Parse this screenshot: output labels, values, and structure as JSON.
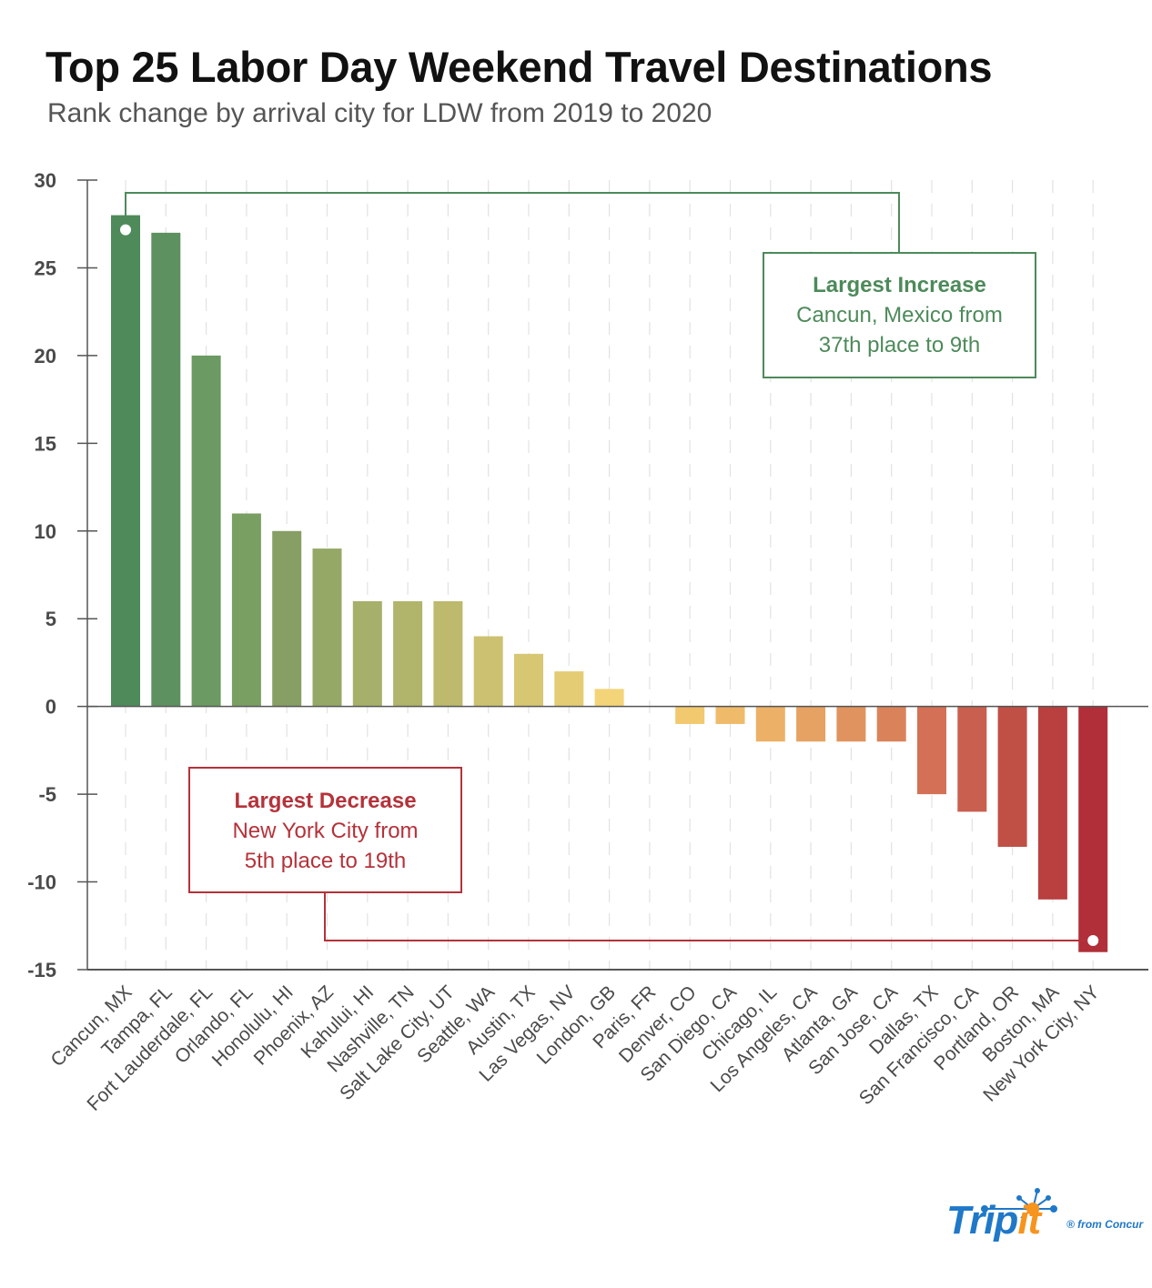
{
  "header": {
    "title": "Top 25 Labor Day Weekend Travel Destinations",
    "subtitle": "Rank change by arrival city for LDW from 2019 to 2020"
  },
  "annotations": {
    "increase": {
      "heading": "Largest Increase",
      "line1": "Cancun, Mexico from",
      "line2": "37th place to 9th",
      "color": "#4d8a5a"
    },
    "decrease": {
      "heading": "Largest Decrease",
      "line1": "New York City from",
      "line2": "5th place to 19th",
      "color": "#b5323a"
    }
  },
  "logo": {
    "word_main": "Trip",
    "word_accent": "it",
    "tagline": "® from Concur"
  },
  "chart_data": {
    "type": "bar",
    "title": "Top 25 Labor Day Weekend Travel Destinations",
    "subtitle": "Rank change by arrival city for LDW from 2019 to 2020",
    "xlabel": "",
    "ylabel": "",
    "ylim": [
      -15,
      30
    ],
    "yticks": [
      30,
      25,
      20,
      15,
      10,
      5,
      0,
      -5,
      -10,
      -15
    ],
    "grid": "vertical dashed",
    "legend": "none",
    "categories": [
      "Cancun, MX",
      "Tampa, FL",
      "Fort Lauderdale, FL",
      "Orlando, FL",
      "Honolulu, HI",
      "Phoenix, AZ",
      "Kahului, HI",
      "Nashville, TN",
      "Salt Lake City, UT",
      "Seattle, WA",
      "Austin, TX",
      "Las Vegas, NV",
      "London, GB",
      "Paris, FR",
      "Denver, CO",
      "San Diego, CA",
      "Chicago, IL",
      "Los Angeles, CA",
      "Atlanta, GA",
      "San Jose, CA",
      "Dallas, TX",
      "San Francisco, CA",
      "Portland, OR",
      "Boston, MA",
      "New York City, NY"
    ],
    "values": [
      28,
      27,
      20,
      11,
      10,
      9,
      6,
      6,
      6,
      4,
      3,
      2,
      1,
      0,
      -1,
      -1,
      -2,
      -2,
      -2,
      -2,
      -5,
      -6,
      -8,
      -11,
      -14
    ],
    "colors": [
      "#4e8a5a",
      "#5d9160",
      "#6b9a62",
      "#7a9f63",
      "#879f64",
      "#96a866",
      "#a6b06a",
      "#b1b56c",
      "#bdb96d",
      "#cbc170",
      "#d7c672",
      "#e4cc74",
      "#f3d478",
      "#f5d378",
      "#f2c96f",
      "#efbb6a",
      "#ecb066",
      "#e6a262",
      "#e0935e",
      "#da835a",
      "#d47056",
      "#c95f4e",
      "#c04f45",
      "#b9403f",
      "#b02f38"
    ],
    "highlights": [
      {
        "category": "Cancun, MX",
        "label": "Largest Increase"
      },
      {
        "category": "New York City, NY",
        "label": "Largest Decrease"
      }
    ]
  }
}
